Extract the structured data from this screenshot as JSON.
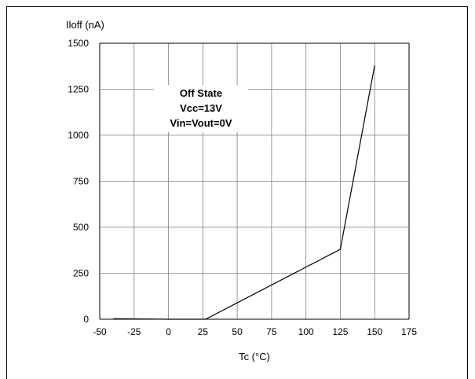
{
  "chart_data": {
    "type": "line",
    "ylabel": "Iloff (nA)",
    "xlabel": "Tc (°C)",
    "xlim": [
      -50,
      175
    ],
    "ylim": [
      0,
      1500
    ],
    "xticks": [
      -50,
      -25,
      0,
      25,
      50,
      75,
      100,
      125,
      150,
      175
    ],
    "yticks": [
      0,
      250,
      500,
      750,
      1000,
      1250,
      1500
    ],
    "grid": true,
    "annotation": [
      "Off State",
      "Vcc=13V",
      "Vin=Vout=0V"
    ],
    "series": [
      {
        "x": [
          -40,
          0,
          27,
          125,
          150
        ],
        "y": [
          3,
          0,
          0,
          380,
          1380
        ]
      }
    ],
    "colors": {
      "line": "#000000",
      "grid": "#808080",
      "background": "#ffffff"
    }
  }
}
